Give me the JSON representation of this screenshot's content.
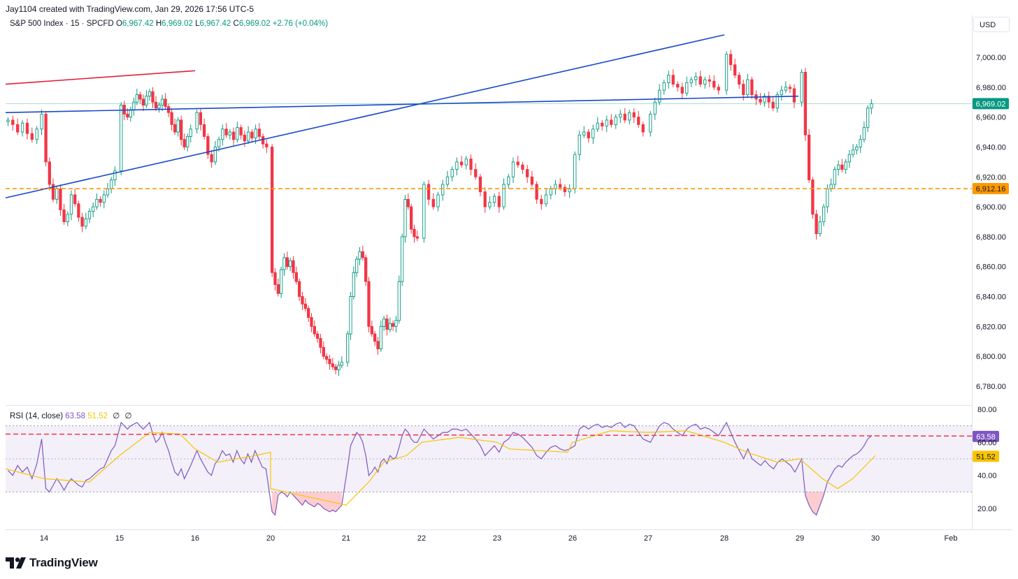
{
  "header": {
    "attribution": "Jay1104 created with TradingView.com, Jan 29, 2026 17:56 UTC-5",
    "symbol": "S&P 500 Index · 15 · SPCFD",
    "open_label": "O",
    "open": "6,967.42",
    "high_label": "H",
    "high": "6,969.02",
    "low_label": "L",
    "low": "6,967.42",
    "close_label": "C",
    "close": "6,969.02",
    "change": "+2.76 (+0.04%)",
    "currency": "USD"
  },
  "rsi_legend": {
    "title": "RSI (14, close)",
    "rsi_value": "63.58",
    "ma_value": "51.52",
    "placeholder_1": "∅",
    "placeholder_2": "∅"
  },
  "brand": {
    "name": "TradingView"
  },
  "colors": {
    "up": "#089981",
    "down": "#f23645",
    "trend_blue": "#1848cc",
    "trend_red": "#e0203a",
    "support": "#ff9800",
    "rsi": "#7e57c2",
    "rsi_ma": "#f9c400",
    "rsi_band": "#7e57c2"
  },
  "chart_data": {
    "type": "candlestick",
    "interval": "15",
    "currency": "USD",
    "x_ticks": [
      "14",
      "15",
      "16",
      "20",
      "21",
      "22",
      "23",
      "26",
      "27",
      "28",
      "29",
      "30",
      "Feb"
    ],
    "y_ticks": [
      7000,
      6980,
      6960,
      6940,
      6920,
      6900,
      6880,
      6860,
      6840,
      6820,
      6800,
      6780
    ],
    "y_tick_labels": [
      "7,000.00",
      "6,980.00",
      "6,960.00",
      "6,940.00",
      "6,920.00",
      "6,900.00",
      "6,880.00",
      "6,860.00",
      "6,840.00",
      "6,820.00",
      "6,800.00",
      "6,780.00"
    ],
    "ylim": [
      6766,
      7016
    ],
    "last_price": 6969.02,
    "last_price_label": "6,969.02",
    "horizontal_levels": [
      {
        "value": 6912.16,
        "label": "6,912.16",
        "style": "dashed"
      }
    ],
    "trendlines": [
      {
        "name": "blue-trend-rising",
        "points": [
          [
            13.0,
            6906
          ],
          [
            28.0,
            7015
          ]
        ]
      },
      {
        "name": "blue-trend-flat",
        "points": [
          [
            13.0,
            6963
          ],
          [
            28.0,
            6974
          ]
        ]
      },
      {
        "name": "red-trend",
        "points": [
          [
            13.0,
            6982
          ],
          [
            16.0,
            6991
          ]
        ]
      }
    ],
    "close_path_by_day": [
      {
        "day": "13",
        "closes": [
          6958,
          6955,
          6950,
          6956,
          6949,
          6945,
          6952,
          6962
        ]
      },
      {
        "day": "14",
        "closes": [
          6930,
          6915,
          6905,
          6912,
          6898,
          6890,
          6895,
          6908,
          6902,
          6893,
          6887,
          6892,
          6897,
          6900,
          6905,
          6903,
          6908,
          6912,
          6918,
          6924
        ]
      },
      {
        "day": "15",
        "closes": [
          6968,
          6962,
          6960,
          6965,
          6970,
          6975,
          6972,
          6968,
          6974,
          6977,
          6970,
          6966,
          6968,
          6972,
          6967,
          6963,
          6955,
          6950,
          6958,
          6945,
          6940,
          6947,
          6952
        ]
      },
      {
        "day": "16",
        "closes": [
          6963,
          6955,
          6947,
          6935,
          6930,
          6940,
          6945,
          6952,
          6948,
          6950,
          6945,
          6953,
          6948,
          6944,
          6950,
          6946,
          6952,
          6947,
          6942,
          6940
        ]
      },
      {
        "day": "20",
        "closes": [
          6856,
          6848,
          6842,
          6858,
          6866,
          6860,
          6864,
          6856,
          6850,
          6840,
          6835,
          6832,
          6826,
          6820,
          6815,
          6812,
          6806,
          6800,
          6798,
          6795,
          6793,
          6791,
          6794,
          6796
        ]
      },
      {
        "day": "21",
        "closes": [
          6815,
          6840,
          6856,
          6865,
          6870,
          6866,
          6850,
          6820,
          6815,
          6810,
          6805,
          6820,
          6825,
          6818,
          6822,
          6820,
          6824,
          6850,
          6880,
          6905,
          6900,
          6885,
          6880,
          6879
        ]
      },
      {
        "day": "22",
        "closes": [
          6915,
          6905,
          6900,
          6908,
          6915,
          6920,
          6925,
          6930,
          6928,
          6932,
          6925,
          6920,
          6910,
          6900,
          6903,
          6907,
          6900,
          6915,
          6920,
          6930,
          6928,
          6925,
          6920,
          6915,
          6905,
          6902,
          6908,
          6912,
          6915,
          6913,
          6910,
          6912
        ]
      },
      {
        "day": "26",
        "closes": [
          6935,
          6948,
          6950,
          6946,
          6952,
          6956,
          6954,
          6958,
          6955,
          6960,
          6962,
          6958,
          6963,
          6960,
          6955,
          6950
        ]
      },
      {
        "day": "27",
        "closes": [
          6962,
          6970,
          6978,
          6983,
          6988,
          6982,
          6980,
          6976,
          6983,
          6985,
          6987,
          6982,
          6985,
          6984,
          6980,
          6978
        ]
      },
      {
        "day": "28",
        "closes": [
          7002,
          6995,
          6988,
          6982,
          6975,
          6985,
          6975,
          6972,
          6970,
          6974,
          6970,
          6966,
          6975,
          6978,
          6980,
          6979,
          6970
        ]
      },
      {
        "day": "29",
        "closes": [
          6990,
          6948,
          6918,
          6895,
          6882,
          6890,
          6900,
          6912,
          6915,
          6925,
          6928,
          6925,
          6930,
          6935,
          6938,
          6940,
          6945,
          6953,
          6966,
          6969
        ]
      }
    ],
    "rsi": {
      "period": 14,
      "source": "close",
      "value": 63.58,
      "ma_value": 51.52,
      "ylim": [
        10,
        84
      ],
      "y_ticks": [
        80,
        60,
        40,
        20
      ],
      "y_tick_labels": [
        "80.00",
        "60.00",
        "40.00",
        "20.00"
      ],
      "band": [
        30,
        70
      ],
      "midline": 50,
      "reference_level": 65,
      "series_by_day": [
        {
          "day": "13",
          "values": [
            43,
            40,
            46,
            42,
            45,
            38,
            47,
            62
          ]
        },
        {
          "day": "14",
          "values": [
            32,
            30,
            34,
            38,
            35,
            31,
            35,
            38,
            36,
            34,
            33,
            37,
            38,
            40,
            42,
            44,
            45,
            50,
            55,
            58
          ]
        },
        {
          "day": "15",
          "values": [
            72,
            70,
            68,
            70,
            71,
            72,
            70,
            68,
            70,
            72,
            65,
            60,
            62,
            66,
            60,
            55,
            48,
            42,
            40,
            44,
            38,
            42,
            46
          ]
        },
        {
          "day": "16",
          "values": [
            55,
            50,
            46,
            42,
            40,
            47,
            50,
            55,
            52,
            53,
            48,
            55,
            50,
            47,
            53,
            48,
            55,
            50,
            45,
            44
          ]
        },
        {
          "day": "20",
          "values": [
            18,
            16,
            28,
            30,
            29,
            27,
            30,
            28,
            26,
            24,
            22,
            25,
            23,
            22,
            21,
            23,
            22,
            20,
            19,
            18,
            19,
            18,
            20,
            22
          ]
        },
        {
          "day": "21",
          "values": [
            45,
            58,
            62,
            66,
            64,
            60,
            52,
            40,
            42,
            45,
            42,
            48,
            50,
            47,
            52,
            50,
            51,
            57,
            64,
            68,
            66,
            62,
            60,
            60
          ]
        },
        {
          "day": "22",
          "values": [
            68,
            65,
            62,
            64,
            66,
            66,
            68,
            68,
            67,
            68,
            65,
            62,
            58,
            52,
            55,
            58,
            54,
            60,
            62,
            66,
            65,
            63,
            60,
            57,
            52,
            50,
            54,
            57,
            58,
            56,
            55,
            56
          ]
        },
        {
          "day": "26",
          "values": [
            58,
            68,
            70,
            68,
            70,
            71,
            69,
            70,
            69,
            71,
            72,
            69,
            71,
            70,
            66,
            62
          ]
        },
        {
          "day": "27",
          "values": [
            60,
            65,
            70,
            72,
            71,
            68,
            66,
            64,
            68,
            70,
            71,
            68,
            69,
            68,
            66,
            64
          ]
        },
        {
          "day": "28",
          "values": [
            72,
            66,
            60,
            55,
            50,
            56,
            50,
            48,
            46,
            49,
            46,
            44,
            48,
            50,
            48,
            46,
            42
          ]
        },
        {
          "day": "29",
          "values": [
            50,
            28,
            22,
            18,
            16,
            22,
            28,
            36,
            40,
            44,
            46,
            45,
            48,
            50,
            52,
            53,
            55,
            58,
            62,
            64
          ]
        }
      ],
      "ma_path": [
        [
          13.0,
          44
        ],
        [
          14.0,
          38
        ],
        [
          14.6,
          36
        ],
        [
          15.0,
          52
        ],
        [
          15.4,
          66
        ],
        [
          15.8,
          65
        ],
        [
          16.0,
          56
        ],
        [
          16.3,
          48
        ],
        [
          16.8,
          52
        ],
        [
          17.2,
          54
        ],
        [
          20.0,
          32
        ],
        [
          20.5,
          27
        ],
        [
          21.0,
          22
        ],
        [
          21.3,
          36
        ],
        [
          21.5,
          48
        ],
        [
          21.8,
          52
        ],
        [
          22.0,
          60
        ],
        [
          22.5,
          63
        ],
        [
          23.0,
          60
        ],
        [
          23.5,
          56
        ],
        [
          25.8,
          54
        ],
        [
          26.0,
          60
        ],
        [
          26.5,
          67
        ],
        [
          27.0,
          66
        ],
        [
          27.5,
          67
        ],
        [
          28.0,
          60
        ],
        [
          28.3,
          54
        ],
        [
          28.7,
          48
        ],
        [
          29.0,
          50
        ],
        [
          29.3,
          38
        ],
        [
          29.5,
          32
        ],
        [
          29.7,
          38
        ],
        [
          30.0,
          52
        ]
      ]
    }
  }
}
